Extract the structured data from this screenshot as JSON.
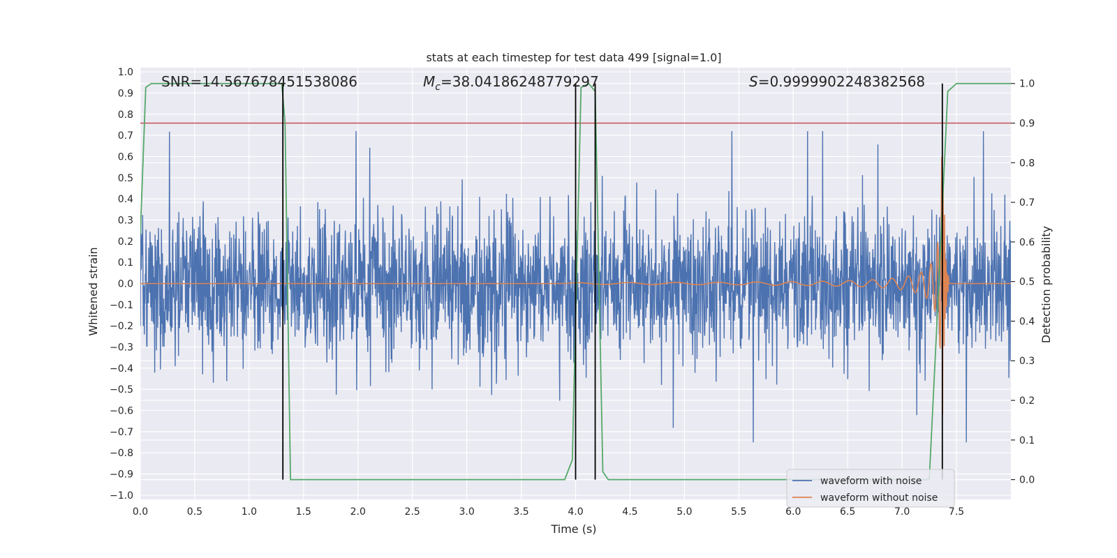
{
  "chart_data": {
    "type": "line",
    "title": "stats at each timestep for test data 499 [signal=1.0]",
    "xlabel": "Time (s)",
    "ylabel": "Whitened strain",
    "ylabel_right": "Detection probability",
    "xlim": [
      0.0,
      8.0
    ],
    "ylim": [
      -1.02,
      1.02
    ],
    "ylim_right": [
      -0.05,
      1.04
    ],
    "x_ticks": [
      "0.0",
      "0.5",
      "1.0",
      "1.5",
      "2.0",
      "2.5",
      "3.0",
      "3.5",
      "4.0",
      "4.5",
      "5.0",
      "5.5",
      "6.0",
      "6.5",
      "7.0",
      "7.5"
    ],
    "y_ticks": [
      "1.0",
      "0.9",
      "0.8",
      "0.7",
      "0.6",
      "0.5",
      "0.4",
      "0.3",
      "0.2",
      "0.1",
      "0.0",
      "-0.1",
      "-0.2",
      "-0.3",
      "-0.4",
      "-0.5",
      "-0.6",
      "-0.7",
      "-0.8",
      "-0.9",
      "-1.0"
    ],
    "y_right_ticks": [
      "1.0",
      "0.9",
      "0.8",
      "0.7",
      "0.6",
      "0.5",
      "0.4",
      "0.3",
      "0.2",
      "0.1",
      "0.0"
    ],
    "grid": true,
    "legend_position": "lower-right",
    "annotations": {
      "snr": "SNR=14.567678451538086",
      "mc": "=38.04186248779297",
      "mc_symbol": "M",
      "mc_sub": "c",
      "s": "=0.9999902248382568",
      "s_symbol": "S"
    },
    "series": [
      {
        "name": "waveform with noise",
        "color": "#4c72b0",
        "description_values": "noise band approx -0.3 to 0.3, peaks to +-0.7"
      },
      {
        "name": "waveform without noise",
        "color": "#dd8452"
      }
    ],
    "detection_probability": {
      "color": "#55a868",
      "x": [
        0.0,
        0.05,
        0.1,
        1.3,
        1.33,
        1.38,
        3.9,
        3.97,
        4.05,
        4.12,
        4.18,
        4.25,
        4.3,
        4.35,
        7.25,
        7.33,
        7.42,
        7.5,
        8.0
      ],
      "y": [
        0.62,
        0.99,
        1.0,
        1.0,
        0.9,
        0.0,
        0.0,
        0.05,
        0.99,
        1.0,
        0.98,
        0.02,
        0.0,
        0.0,
        0.0,
        0.45,
        0.98,
        1.0,
        1.0
      ]
    },
    "threshold": {
      "y_right": 0.9,
      "color": "#c44e52"
    },
    "vertical_lines_x": [
      1.31,
      4.0,
      4.18,
      7.37
    ],
    "chirp": {
      "start_x": 3.9,
      "merge_x": 7.38,
      "peak_amplitude": 0.62
    }
  }
}
